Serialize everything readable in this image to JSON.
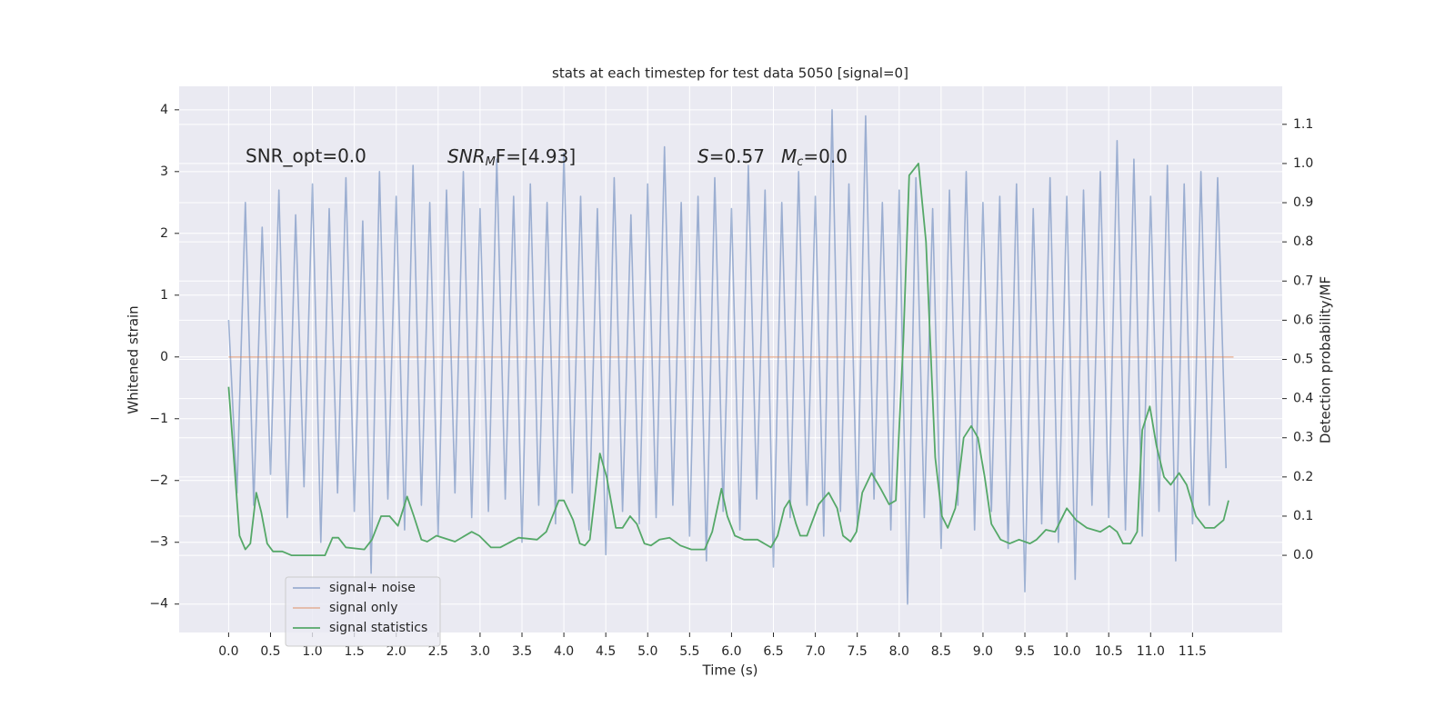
{
  "chart_data": {
    "type": "line",
    "title": "stats at each timestep for test data 5050 [signal=0]",
    "xlabel": "Time (s)",
    "ylabel": "Whitened strain",
    "y2label": "Detection probability/MF",
    "annotations": [
      "SNR_opt=0.0",
      [
        "SNR",
        "M",
        "F=[4.93]"
      ],
      [
        "S",
        "=0.57"
      ],
      [
        "M",
        "c",
        "=0.0"
      ]
    ],
    "xlim": [
      -0.59,
      12.57
    ],
    "ylim": [
      -4.46,
      4.38
    ],
    "y2lim": [
      -0.197,
      1.197
    ],
    "xticks": [
      {
        "value": 0,
        "label": "0.0"
      },
      {
        "value": 0.5,
        "label": "0.5"
      },
      {
        "value": 1,
        "label": "1.0"
      },
      {
        "value": 1.5,
        "label": "1.5"
      },
      {
        "value": 2,
        "label": "2.0"
      },
      {
        "value": 2.5,
        "label": "2.5"
      },
      {
        "value": 3,
        "label": "3.0"
      },
      {
        "value": 3.5,
        "label": "3.5"
      },
      {
        "value": 4,
        "label": "4.0"
      },
      {
        "value": 4.5,
        "label": "4.5"
      },
      {
        "value": 5,
        "label": "5.0"
      },
      {
        "value": 5.5,
        "label": "5.5"
      },
      {
        "value": 6,
        "label": "6.0"
      },
      {
        "value": 6.5,
        "label": "6.5"
      },
      {
        "value": 7,
        "label": "7.0"
      },
      {
        "value": 7.5,
        "label": "7.5"
      },
      {
        "value": 8,
        "label": "8.0"
      },
      {
        "value": 8.5,
        "label": "8.5"
      },
      {
        "value": 9,
        "label": "9.0"
      },
      {
        "value": 9.5,
        "label": "9.5"
      },
      {
        "value": 10,
        "label": "10.0"
      },
      {
        "value": 10.5,
        "label": "10.5"
      },
      {
        "value": 11,
        "label": "11.0"
      },
      {
        "value": 11.5,
        "label": "11.5"
      }
    ],
    "yticks": [
      {
        "value": -4,
        "label": "−4"
      },
      {
        "value": -3,
        "label": "−3"
      },
      {
        "value": -2,
        "label": "−2"
      },
      {
        "value": -1,
        "label": "−1"
      },
      0,
      1,
      2,
      3,
      4
    ],
    "y2ticks": [
      {
        "value": 0,
        "label": "0.0"
      },
      {
        "value": 0.1,
        "label": "0.1"
      },
      {
        "value": 0.2,
        "label": "0.2"
      },
      {
        "value": 0.3,
        "label": "0.3"
      },
      {
        "value": 0.4,
        "label": "0.4"
      },
      {
        "value": 0.5,
        "label": "0.5"
      },
      {
        "value": 0.6,
        "label": "0.6"
      },
      {
        "value": 0.7,
        "label": "0.7"
      },
      {
        "value": 0.8,
        "label": "0.8"
      },
      {
        "value": 0.9,
        "label": "0.9"
      },
      {
        "value": 1,
        "label": "1.0"
      },
      {
        "value": 1.1,
        "label": "1.1"
      }
    ],
    "grid": true,
    "legend": "lower left",
    "series": [
      {
        "name": "signal+ noise",
        "color": "#4c72b0",
        "alpha": 0.5,
        "x": [
          0.0,
          0.1,
          0.2,
          0.3,
          0.4,
          0.5,
          0.6,
          0.7,
          0.8,
          0.9,
          1.0,
          1.1,
          1.2,
          1.3,
          1.4,
          1.5,
          1.6,
          1.7,
          1.8,
          1.9,
          2.0,
          2.1,
          2.2,
          2.3,
          2.4,
          2.5,
          2.6,
          2.7,
          2.8,
          2.9,
          3.0,
          3.1,
          3.2,
          3.3,
          3.4,
          3.5,
          3.6,
          3.7,
          3.8,
          3.9,
          4.0,
          4.1,
          4.2,
          4.3,
          4.4,
          4.5,
          4.6,
          4.7,
          4.8,
          4.9,
          5.0,
          5.1,
          5.2,
          5.3,
          5.4,
          5.5,
          5.6,
          5.7,
          5.8,
          5.9,
          6.0,
          6.1,
          6.2,
          6.3,
          6.4,
          6.5,
          6.6,
          6.7,
          6.8,
          6.9,
          7.0,
          7.1,
          7.2,
          7.3,
          7.4,
          7.5,
          7.6,
          7.7,
          7.8,
          7.9,
          8.0,
          8.1,
          8.2,
          8.3,
          8.4,
          8.5,
          8.6,
          8.7,
          8.8,
          8.9,
          9.0,
          9.1,
          9.2,
          9.3,
          9.4,
          9.5,
          9.6,
          9.7,
          9.8,
          9.9,
          10.0,
          10.1,
          10.2,
          10.3,
          10.4,
          10.5,
          10.6,
          10.7,
          10.8,
          10.9,
          11.0,
          11.1,
          11.2,
          11.3,
          11.4,
          11.5,
          11.6,
          11.7,
          11.8,
          11.9
        ],
        "values": [
          0.6,
          -2.2,
          2.5,
          -2.4,
          2.1,
          -1.9,
          2.7,
          -2.6,
          2.3,
          -2.1,
          2.8,
          -3.0,
          2.4,
          -2.2,
          2.9,
          -2.5,
          2.2,
          -3.5,
          3.0,
          -2.3,
          2.6,
          -2.8,
          3.1,
          -2.4,
          2.5,
          -2.9,
          2.7,
          -2.2,
          3.0,
          -2.6,
          2.4,
          -2.5,
          3.2,
          -2.3,
          2.6,
          -3.0,
          2.8,
          -2.4,
          2.5,
          -2.7,
          3.3,
          -2.2,
          2.6,
          -2.8,
          2.4,
          -3.2,
          2.9,
          -2.5,
          2.3,
          -2.7,
          2.8,
          -2.6,
          3.4,
          -2.4,
          2.5,
          -2.9,
          2.6,
          -3.3,
          2.9,
          -2.5,
          2.4,
          -2.8,
          3.1,
          -2.3,
          2.7,
          -3.4,
          2.5,
          -2.6,
          3.0,
          -2.4,
          2.6,
          -2.9,
          4.0,
          -2.5,
          2.8,
          -2.7,
          3.9,
          -2.3,
          2.5,
          -2.8,
          2.7,
          -4.0,
          2.9,
          -2.6,
          2.4,
          -3.1,
          2.7,
          -2.4,
          3.0,
          -2.8,
          2.5,
          -2.5,
          2.6,
          -3.1,
          2.8,
          -3.8,
          2.4,
          -2.7,
          2.9,
          -3.0,
          2.6,
          -3.6,
          2.7,
          -2.4,
          3.0,
          -2.6,
          3.5,
          -2.8,
          3.2,
          -2.9,
          2.6,
          -2.5,
          3.1,
          -3.3,
          2.8,
          -2.7,
          3.0,
          -2.4,
          2.9,
          -1.8
        ]
      },
      {
        "name": "signal only",
        "color": "#dd8452",
        "alpha": 0.5,
        "x": [
          0.0,
          11.99
        ],
        "values": [
          0,
          0
        ]
      },
      {
        "name": "signal statistics",
        "color": "#55a868",
        "axis": "y2",
        "x": [
          0.0,
          0.13,
          0.2,
          0.26,
          0.33,
          0.39,
          0.46,
          0.53,
          0.64,
          0.75,
          0.97,
          1.15,
          1.24,
          1.31,
          1.4,
          1.62,
          1.71,
          1.82,
          1.92,
          2.02,
          2.13,
          2.21,
          2.3,
          2.37,
          2.48,
          2.7,
          2.9,
          2.99,
          3.13,
          3.24,
          3.46,
          3.68,
          3.79,
          3.94,
          4.0,
          4.11,
          4.19,
          4.25,
          4.31,
          4.43,
          4.51,
          4.62,
          4.7,
          4.79,
          4.87,
          4.96,
          5.04,
          5.14,
          5.26,
          5.39,
          5.52,
          5.68,
          5.77,
          5.88,
          5.95,
          6.04,
          6.15,
          6.31,
          6.47,
          6.55,
          6.63,
          6.69,
          6.77,
          6.82,
          6.9,
          7.04,
          7.16,
          7.26,
          7.33,
          7.42,
          7.49,
          7.56,
          7.67,
          7.78,
          7.88,
          7.96,
          8.05,
          8.12,
          8.23,
          8.32,
          8.43,
          8.51,
          8.58,
          8.67,
          8.77,
          8.86,
          8.94,
          9.02,
          9.1,
          9.21,
          9.32,
          9.43,
          9.56,
          9.64,
          9.75,
          9.86,
          10.0,
          10.11,
          10.24,
          10.4,
          10.51,
          10.6,
          10.67,
          10.76,
          10.84,
          10.9,
          10.99,
          11.07,
          11.16,
          11.24,
          11.34,
          11.43,
          11.54,
          11.65,
          11.76,
          11.87,
          11.93
        ],
        "values": [
          0.43,
          0.05,
          0.015,
          0.03,
          0.16,
          0.11,
          0.03,
          0.01,
          0.01,
          0.0,
          0.0,
          0.0,
          0.045,
          0.045,
          0.02,
          0.015,
          0.04,
          0.1,
          0.1,
          0.075,
          0.15,
          0.1,
          0.04,
          0.035,
          0.05,
          0.035,
          0.06,
          0.05,
          0.02,
          0.02,
          0.045,
          0.04,
          0.06,
          0.14,
          0.14,
          0.09,
          0.03,
          0.025,
          0.04,
          0.26,
          0.2,
          0.07,
          0.07,
          0.1,
          0.08,
          0.03,
          0.025,
          0.04,
          0.045,
          0.025,
          0.015,
          0.015,
          0.06,
          0.17,
          0.1,
          0.05,
          0.04,
          0.04,
          0.02,
          0.05,
          0.12,
          0.14,
          0.08,
          0.05,
          0.05,
          0.13,
          0.16,
          0.12,
          0.05,
          0.035,
          0.06,
          0.16,
          0.21,
          0.17,
          0.13,
          0.14,
          0.55,
          0.97,
          1.0,
          0.8,
          0.25,
          0.1,
          0.07,
          0.12,
          0.3,
          0.33,
          0.3,
          0.2,
          0.08,
          0.04,
          0.03,
          0.04,
          0.03,
          0.04,
          0.065,
          0.06,
          0.12,
          0.09,
          0.07,
          0.06,
          0.075,
          0.06,
          0.03,
          0.03,
          0.06,
          0.32,
          0.38,
          0.28,
          0.2,
          0.18,
          0.21,
          0.18,
          0.1,
          0.07,
          0.07,
          0.09,
          0.14
        ]
      }
    ]
  }
}
